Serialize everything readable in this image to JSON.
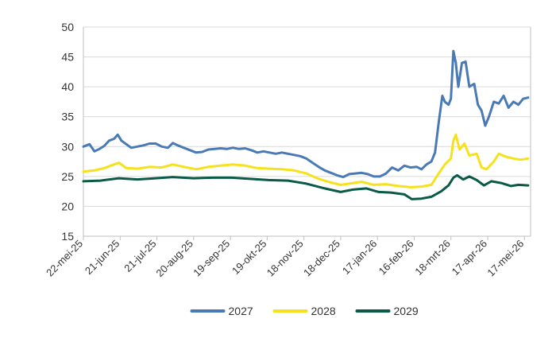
{
  "chart_data": {
    "type": "line",
    "title": "",
    "xlabel": "",
    "ylabel": "",
    "ylim": [
      15,
      50
    ],
    "yticks": [
      15,
      20,
      25,
      30,
      35,
      40,
      45,
      50
    ],
    "xlim": [
      "2025-05-22",
      "2026-05-22"
    ],
    "xticks": [
      {
        "date": "2025-05-22",
        "label": "22-mei-25"
      },
      {
        "date": "2025-06-21",
        "label": "21-jun-25"
      },
      {
        "date": "2025-07-21",
        "label": "21-jul-25"
      },
      {
        "date": "2025-08-20",
        "label": "20-aug-25"
      },
      {
        "date": "2025-09-19",
        "label": "19-sep-25"
      },
      {
        "date": "2025-10-19",
        "label": "19-okt-25"
      },
      {
        "date": "2025-11-18",
        "label": "18-nov-25"
      },
      {
        "date": "2025-12-18",
        "label": "18-dec-25"
      },
      {
        "date": "2026-01-17",
        "label": "17-jan-26"
      },
      {
        "date": "2026-02-16",
        "label": "16-feb-26"
      },
      {
        "date": "2026-03-18",
        "label": "18-mrt-26"
      },
      {
        "date": "2026-04-17",
        "label": "17-apr-26"
      },
      {
        "date": "2026-05-17",
        "label": "17-mei-26"
      }
    ],
    "grid": true,
    "legend_position": "bottom",
    "series": [
      {
        "name": "2027",
        "color": "#4a7ab5",
        "points": [
          [
            "2025-05-22",
            30.0
          ],
          [
            "2025-05-27",
            30.4
          ],
          [
            "2025-05-31",
            29.2
          ],
          [
            "2025-06-04",
            29.6
          ],
          [
            "2025-06-08",
            30.1
          ],
          [
            "2025-06-12",
            31.0
          ],
          [
            "2025-06-16",
            31.3
          ],
          [
            "2025-06-19",
            32.0
          ],
          [
            "2025-06-22",
            31.0
          ],
          [
            "2025-06-26",
            30.4
          ],
          [
            "2025-06-30",
            29.8
          ],
          [
            "2025-07-05",
            30.0
          ],
          [
            "2025-07-10",
            30.2
          ],
          [
            "2025-07-15",
            30.5
          ],
          [
            "2025-07-20",
            30.5
          ],
          [
            "2025-07-25",
            30.0
          ],
          [
            "2025-07-30",
            29.8
          ],
          [
            "2025-08-03",
            30.6
          ],
          [
            "2025-08-07",
            30.2
          ],
          [
            "2025-08-12",
            29.8
          ],
          [
            "2025-08-17",
            29.4
          ],
          [
            "2025-08-22",
            29.0
          ],
          [
            "2025-08-27",
            29.1
          ],
          [
            "2025-09-01",
            29.5
          ],
          [
            "2025-09-06",
            29.6
          ],
          [
            "2025-09-11",
            29.7
          ],
          [
            "2025-09-16",
            29.6
          ],
          [
            "2025-09-21",
            29.8
          ],
          [
            "2025-09-26",
            29.6
          ],
          [
            "2025-10-01",
            29.7
          ],
          [
            "2025-10-06",
            29.4
          ],
          [
            "2025-10-11",
            29.0
          ],
          [
            "2025-10-16",
            29.2
          ],
          [
            "2025-10-21",
            29.0
          ],
          [
            "2025-10-26",
            28.8
          ],
          [
            "2025-10-31",
            29.0
          ],
          [
            "2025-11-05",
            28.8
          ],
          [
            "2025-11-10",
            28.6
          ],
          [
            "2025-11-15",
            28.4
          ],
          [
            "2025-11-20",
            28.0
          ],
          [
            "2025-11-25",
            27.3
          ],
          [
            "2025-11-30",
            26.6
          ],
          [
            "2025-12-05",
            26.0
          ],
          [
            "2025-12-10",
            25.6
          ],
          [
            "2025-12-15",
            25.2
          ],
          [
            "2025-12-20",
            24.9
          ],
          [
            "2025-12-25",
            25.4
          ],
          [
            "2025-12-30",
            25.5
          ],
          [
            "2026-01-04",
            25.6
          ],
          [
            "2026-01-09",
            25.4
          ],
          [
            "2026-01-14",
            25.0
          ],
          [
            "2026-01-19",
            25.0
          ],
          [
            "2026-01-24",
            25.5
          ],
          [
            "2026-01-29",
            26.5
          ],
          [
            "2026-02-03",
            26.0
          ],
          [
            "2026-02-08",
            26.8
          ],
          [
            "2026-02-13",
            26.5
          ],
          [
            "2026-02-18",
            26.6
          ],
          [
            "2026-02-22",
            26.2
          ],
          [
            "2026-02-26",
            27.0
          ],
          [
            "2026-03-02",
            27.5
          ],
          [
            "2026-03-05",
            29.0
          ],
          [
            "2026-03-08",
            34.0
          ],
          [
            "2026-03-11",
            38.5
          ],
          [
            "2026-03-13",
            37.5
          ],
          [
            "2026-03-16",
            37.0
          ],
          [
            "2026-03-18",
            38.0
          ],
          [
            "2026-03-20",
            46.0
          ],
          [
            "2026-03-22",
            44.0
          ],
          [
            "2026-03-24",
            40.0
          ],
          [
            "2026-03-27",
            44.0
          ],
          [
            "2026-03-30",
            44.2
          ],
          [
            "2026-04-02",
            40.0
          ],
          [
            "2026-04-06",
            40.5
          ],
          [
            "2026-04-09",
            37.0
          ],
          [
            "2026-04-12",
            36.0
          ],
          [
            "2026-04-15",
            33.5
          ],
          [
            "2026-04-18",
            35.0
          ],
          [
            "2026-04-22",
            37.5
          ],
          [
            "2026-04-26",
            37.2
          ],
          [
            "2026-04-30",
            38.5
          ],
          [
            "2026-05-04",
            36.5
          ],
          [
            "2026-05-08",
            37.5
          ],
          [
            "2026-05-12",
            37.0
          ],
          [
            "2026-05-16",
            38.0
          ],
          [
            "2026-05-20",
            38.2
          ]
        ]
      },
      {
        "name": "2028",
        "color": "#f5e21c",
        "points": [
          [
            "2025-05-22",
            25.8
          ],
          [
            "2025-05-31",
            26.0
          ],
          [
            "2025-06-08",
            26.4
          ],
          [
            "2025-06-16",
            27.0
          ],
          [
            "2025-06-20",
            27.3
          ],
          [
            "2025-06-26",
            26.4
          ],
          [
            "2025-07-05",
            26.3
          ],
          [
            "2025-07-15",
            26.6
          ],
          [
            "2025-07-25",
            26.5
          ],
          [
            "2025-08-03",
            27.0
          ],
          [
            "2025-08-12",
            26.6
          ],
          [
            "2025-08-22",
            26.2
          ],
          [
            "2025-09-01",
            26.6
          ],
          [
            "2025-09-11",
            26.8
          ],
          [
            "2025-09-21",
            27.0
          ],
          [
            "2025-10-01",
            26.8
          ],
          [
            "2025-10-11",
            26.4
          ],
          [
            "2025-10-21",
            26.3
          ],
          [
            "2025-10-31",
            26.2
          ],
          [
            "2025-11-10",
            26.0
          ],
          [
            "2025-11-20",
            25.5
          ],
          [
            "2025-11-30",
            24.6
          ],
          [
            "2025-12-10",
            24.0
          ],
          [
            "2025-12-18",
            23.6
          ],
          [
            "2025-12-25",
            23.8
          ],
          [
            "2026-01-04",
            24.1
          ],
          [
            "2026-01-14",
            23.6
          ],
          [
            "2026-01-24",
            23.7
          ],
          [
            "2026-02-03",
            23.4
          ],
          [
            "2026-02-13",
            23.2
          ],
          [
            "2026-02-22",
            23.3
          ],
          [
            "2026-03-02",
            23.6
          ],
          [
            "2026-03-08",
            25.5
          ],
          [
            "2026-03-13",
            27.0
          ],
          [
            "2026-03-18",
            28.0
          ],
          [
            "2026-03-20",
            31.0
          ],
          [
            "2026-03-22",
            32.0
          ],
          [
            "2026-03-25",
            29.5
          ],
          [
            "2026-03-29",
            30.5
          ],
          [
            "2026-04-02",
            28.5
          ],
          [
            "2026-04-08",
            28.8
          ],
          [
            "2026-04-12",
            26.5
          ],
          [
            "2026-04-16",
            26.2
          ],
          [
            "2026-04-22",
            27.5
          ],
          [
            "2026-04-26",
            28.8
          ],
          [
            "2026-05-02",
            28.3
          ],
          [
            "2026-05-08",
            28.0
          ],
          [
            "2026-05-14",
            27.8
          ],
          [
            "2026-05-20",
            28.0
          ]
        ]
      },
      {
        "name": "2029",
        "color": "#0b5a46",
        "points": [
          [
            "2025-05-22",
            24.2
          ],
          [
            "2025-06-05",
            24.3
          ],
          [
            "2025-06-20",
            24.7
          ],
          [
            "2025-07-05",
            24.5
          ],
          [
            "2025-07-20",
            24.7
          ],
          [
            "2025-08-03",
            24.9
          ],
          [
            "2025-08-20",
            24.7
          ],
          [
            "2025-09-05",
            24.8
          ],
          [
            "2025-09-20",
            24.8
          ],
          [
            "2025-10-05",
            24.6
          ],
          [
            "2025-10-20",
            24.4
          ],
          [
            "2025-11-05",
            24.3
          ],
          [
            "2025-11-20",
            23.8
          ],
          [
            "2025-12-05",
            23.0
          ],
          [
            "2025-12-18",
            22.4
          ],
          [
            "2025-12-28",
            22.8
          ],
          [
            "2026-01-08",
            23.0
          ],
          [
            "2026-01-18",
            22.4
          ],
          [
            "2026-01-28",
            22.3
          ],
          [
            "2026-02-08",
            22.0
          ],
          [
            "2026-02-14",
            21.2
          ],
          [
            "2026-02-22",
            21.3
          ],
          [
            "2026-03-02",
            21.6
          ],
          [
            "2026-03-10",
            22.5
          ],
          [
            "2026-03-16",
            23.5
          ],
          [
            "2026-03-20",
            24.8
          ],
          [
            "2026-03-23",
            25.2
          ],
          [
            "2026-03-28",
            24.5
          ],
          [
            "2026-04-02",
            25.0
          ],
          [
            "2026-04-08",
            24.4
          ],
          [
            "2026-04-14",
            23.5
          ],
          [
            "2026-04-20",
            24.2
          ],
          [
            "2026-04-28",
            23.9
          ],
          [
            "2026-05-06",
            23.4
          ],
          [
            "2026-05-12",
            23.6
          ],
          [
            "2026-05-20",
            23.5
          ]
        ]
      }
    ]
  }
}
